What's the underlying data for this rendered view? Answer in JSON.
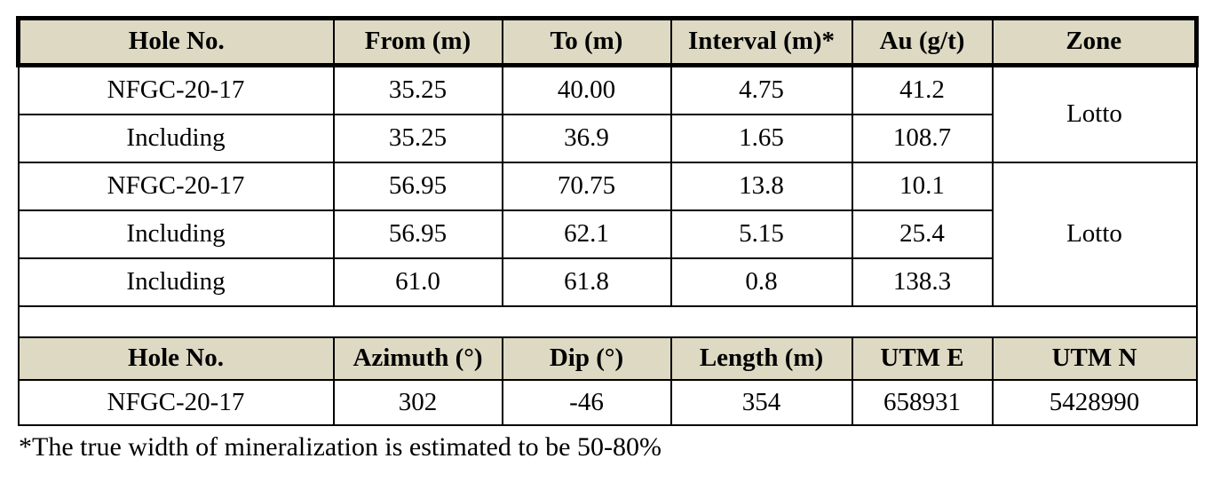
{
  "colors": {
    "header_bg": "#ddd9c3",
    "border": "#000000",
    "text": "#000000",
    "page_bg": "#ffffff"
  },
  "assay_table": {
    "headers": [
      "Hole No.",
      "From (m)",
      "To (m)",
      "Interval (m)*",
      "Au (g/t)",
      "Zone"
    ],
    "rows": [
      {
        "hole": "NFGC-20-17",
        "from": "35.25",
        "to": "40.00",
        "interval": "4.75",
        "au": "41.2",
        "zone": "Lotto",
        "zone_rowspan": 2
      },
      {
        "hole": "Including",
        "from": "35.25",
        "to": "36.9",
        "interval": "1.65",
        "au": "108.7"
      },
      {
        "hole": "NFGC-20-17",
        "from": "56.95",
        "to": "70.75",
        "interval": "13.8",
        "au": "10.1",
        "zone": "Lotto",
        "zone_rowspan": 3
      },
      {
        "hole": "Including",
        "from": "56.95",
        "to": "62.1",
        "interval": "5.15",
        "au": "25.4"
      },
      {
        "hole": "Including",
        "from": "61.0",
        "to": "61.8",
        "interval": "0.8",
        "au": "138.3"
      }
    ]
  },
  "collar_table": {
    "headers": [
      "Hole No.",
      "Azimuth (°)",
      "Dip (°)",
      "Length (m)",
      "UTM E",
      "UTM N"
    ],
    "rows": [
      {
        "hole": "NFGC-20-17",
        "azimuth": "302",
        "dip": "-46",
        "length": "354",
        "utm_e": "658931",
        "utm_n": "5428990"
      }
    ]
  },
  "footnote": "*The true width of mineralization is estimated to be 50-80%"
}
